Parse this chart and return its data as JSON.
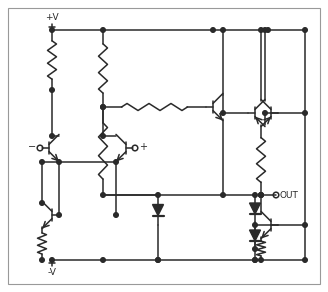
{
  "background": "#ffffff",
  "line_color": "#2a2a2a",
  "line_width": 1.1,
  "figsize": [
    3.28,
    2.92
  ],
  "dpi": 100,
  "border": [
    8,
    8,
    312,
    276
  ]
}
